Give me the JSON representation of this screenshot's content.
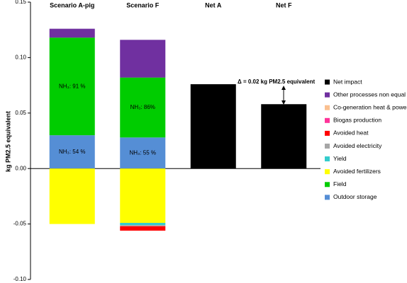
{
  "chart_data": {
    "type": "stacked_bar",
    "y_label": "kg PM2.5 equivalent",
    "categories": [
      "Scenario A-pig",
      "Scenario  F",
      "Net A",
      "Net F"
    ],
    "ylim": [
      -0.1,
      0.15
    ],
    "yticks": [
      {
        "value": -0.1,
        "label": "-0.10"
      },
      {
        "value": -0.05,
        "label": "-0.05"
      },
      {
        "value": 0,
        "label": "0.00"
      },
      {
        "value": 0.05,
        "label": "0.05"
      },
      {
        "value": 0.1,
        "label": "0.10"
      },
      {
        "value": 0.15,
        "label": "0.15"
      }
    ],
    "series": [
      {
        "name": "Net impact",
        "color": "#000000",
        "values": [
          null,
          null,
          0.076,
          0.058
        ]
      },
      {
        "name": "Other processes non equal",
        "color": "#7030a0",
        "values": [
          0.008,
          0.034,
          null,
          null
        ]
      },
      {
        "name": "Co-generation heat & power",
        "color": "#fac090",
        "values": [
          null,
          null,
          null,
          null
        ]
      },
      {
        "name": "Biogas production",
        "color": "#ff3399",
        "values": [
          null,
          null,
          null,
          null
        ]
      },
      {
        "name": "Avoided heat",
        "color": "#ff0000",
        "values": [
          null,
          -0.004,
          null,
          null
        ]
      },
      {
        "name": "Avoided electricity",
        "color": "#a6a6a6",
        "values": [
          null,
          -0.001,
          null,
          null
        ]
      },
      {
        "name": "Yield",
        "color": "#33cccc",
        "values": [
          null,
          -0.002,
          null,
          null
        ]
      },
      {
        "name": "Avoided fertilizers",
        "color": "#ffff00",
        "values": [
          -0.05,
          -0.049,
          null,
          null
        ]
      },
      {
        "name": "Field",
        "color": "#00cc00",
        "values": [
          0.088,
          0.054,
          null,
          null
        ]
      },
      {
        "name": "Outdoor storage",
        "color": "#558ed5",
        "values": [
          0.03,
          0.028,
          null,
          null
        ]
      }
    ],
    "annotations": [
      "NH₃: 91 %",
      "NH₃: 86%",
      "NH₃: 54 %",
      "NH₃: 55 %",
      "Δ = 0.02  kg PM2.5 equivalent"
    ]
  }
}
